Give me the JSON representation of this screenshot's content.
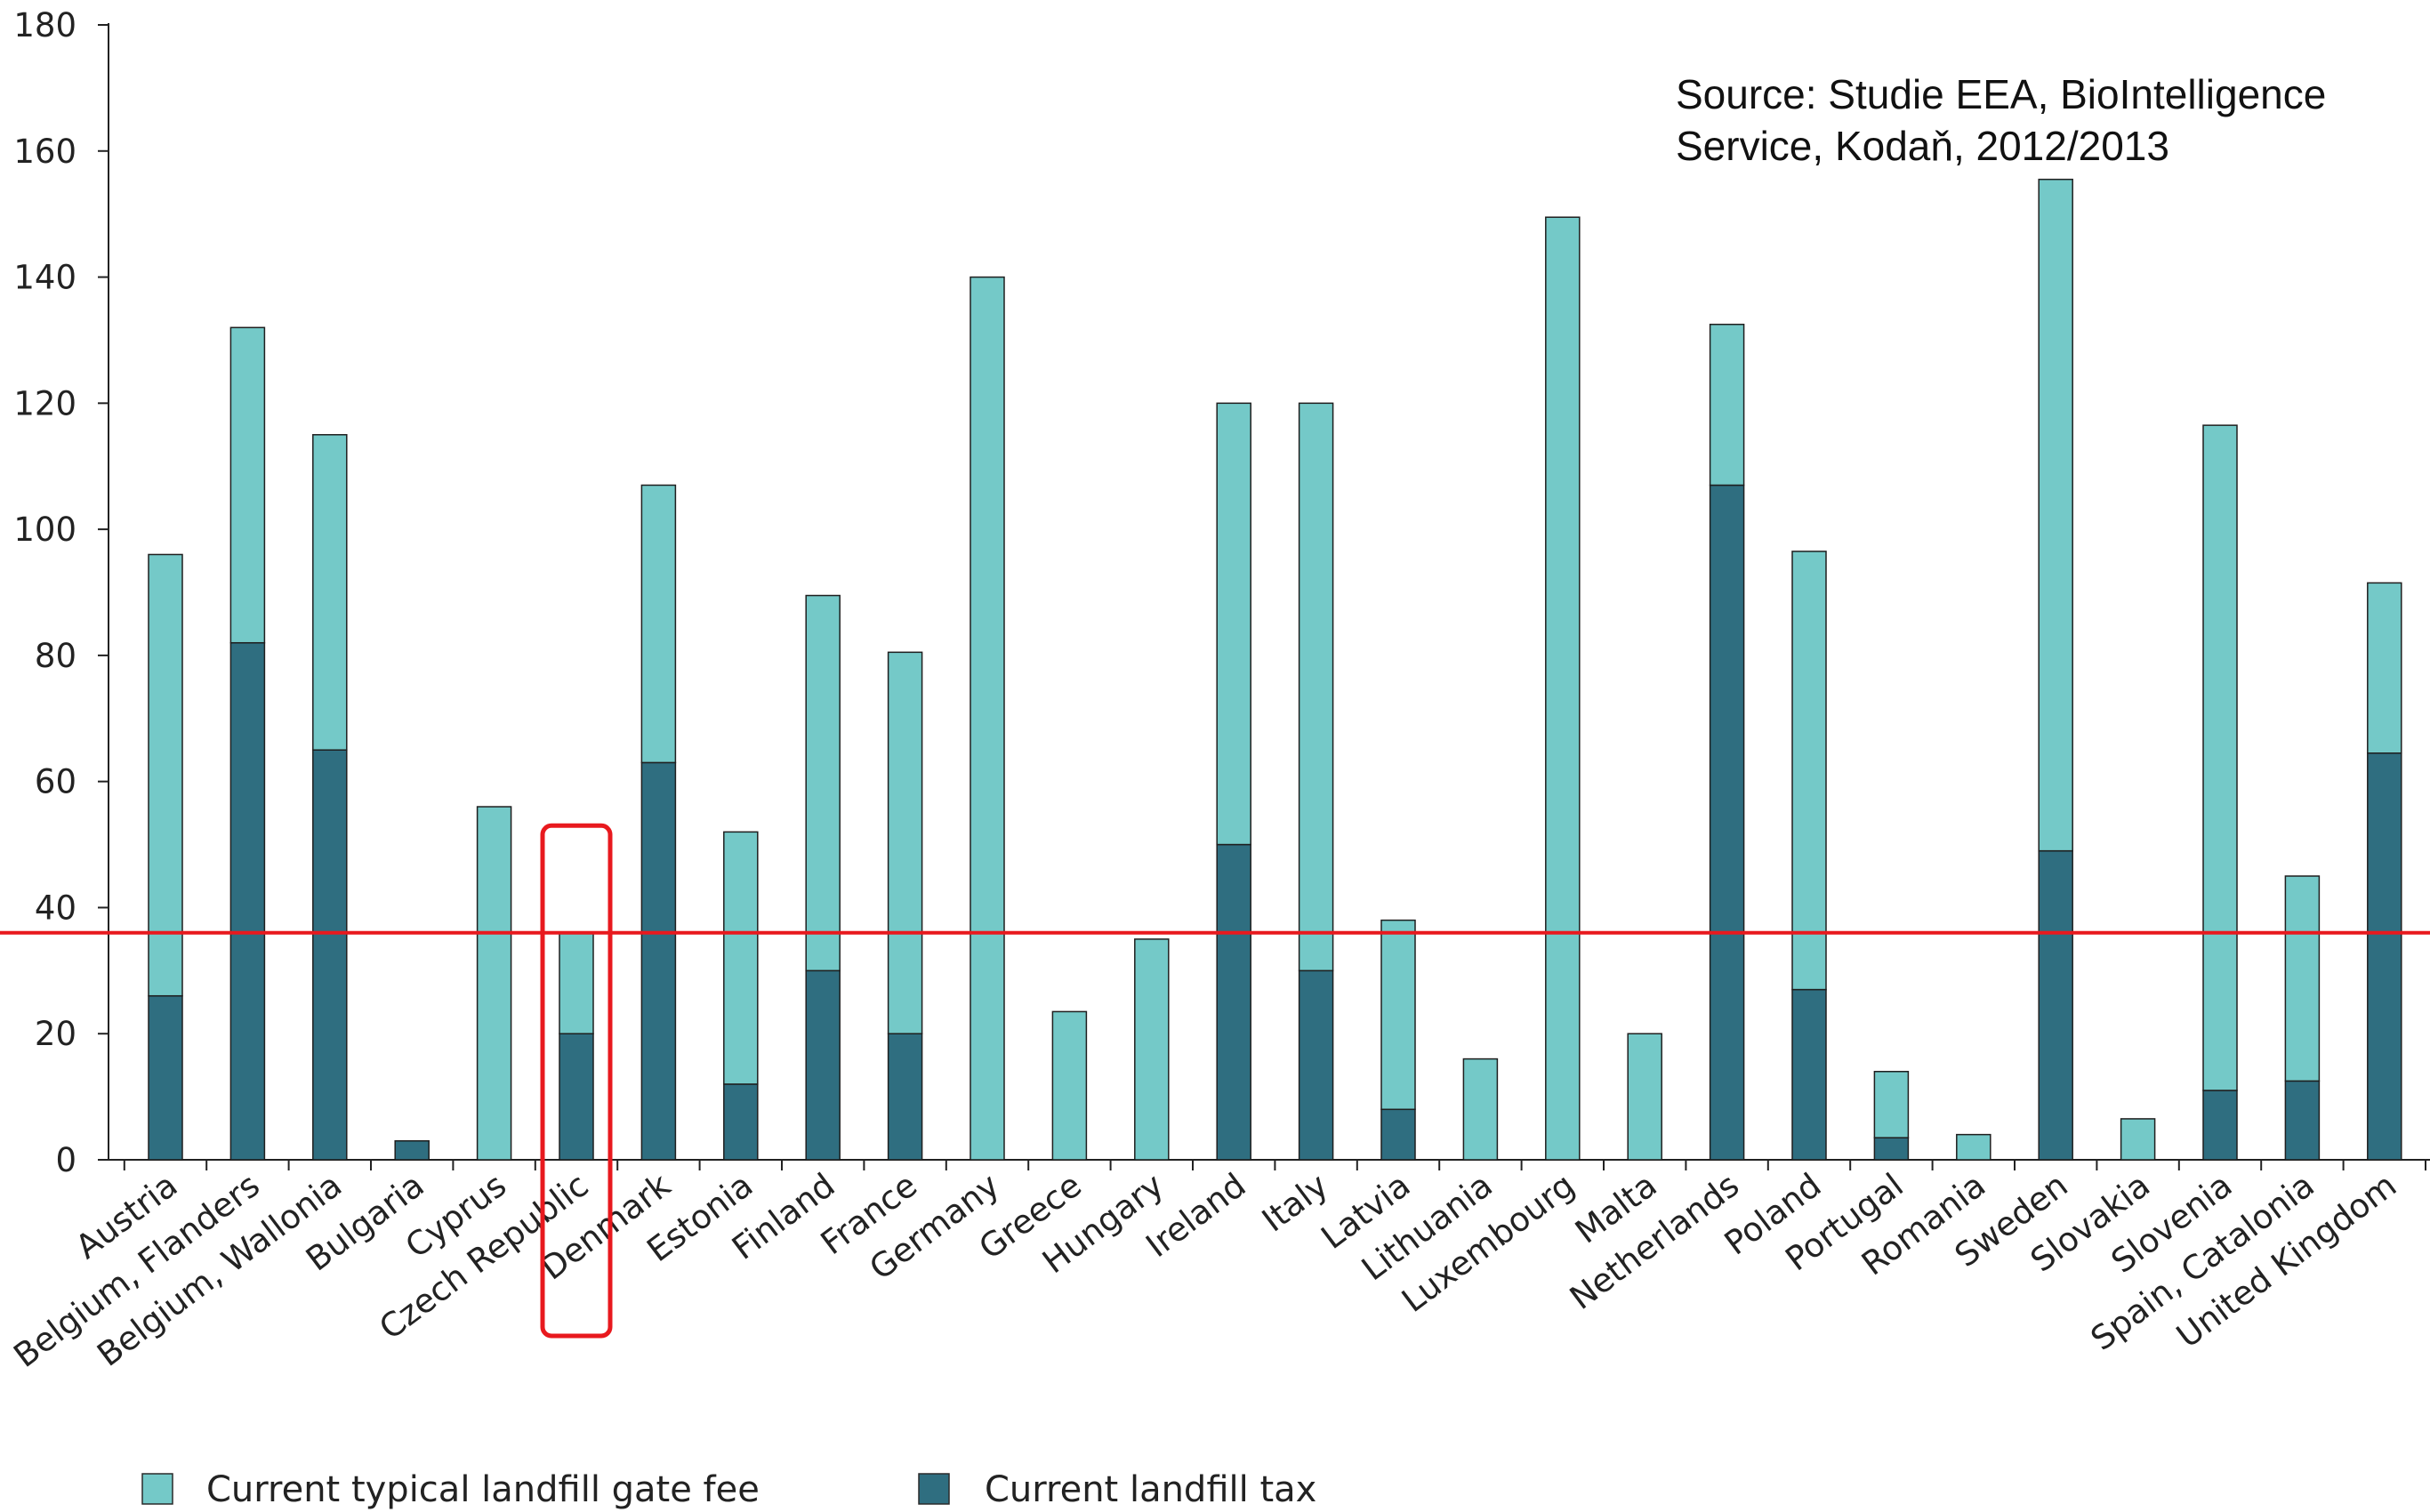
{
  "chart_data": {
    "type": "bar",
    "stacked": true,
    "ylim": [
      0,
      180
    ],
    "yticks": [
      0,
      20,
      40,
      60,
      80,
      100,
      120,
      140,
      160,
      180
    ],
    "categories": [
      "Austria",
      "Belgium, Flanders",
      "Belgium, Wallonia",
      "Bulgaria",
      "Cyprus",
      "Czech Republic",
      "Denmark",
      "Estonia",
      "Finland",
      "France",
      "Germany",
      "Greece",
      "Hungary",
      "Ireland",
      "Italy",
      "Latvia",
      "Lithuania",
      "Luxembourg",
      "Malta",
      "Netherlands",
      "Poland",
      "Portugal",
      "Romania",
      "Sweden",
      "Slovakia",
      "Slovenia",
      "Spain, Catalonia",
      "United Kingdom"
    ],
    "series": [
      {
        "name": "Current landfill tax",
        "color": "#2f6e80",
        "values": [
          26,
          82,
          65,
          3,
          0,
          20,
          63,
          12,
          30,
          20,
          0,
          0,
          0,
          50,
          30,
          8,
          0,
          0,
          0,
          107,
          27,
          3.5,
          0,
          49,
          0,
          11,
          12.5,
          64.5
        ]
      },
      {
        "name": "Current typical landfill gate fee",
        "color": "#74c9c8",
        "values": [
          70,
          50,
          50,
          0,
          56,
          16,
          44,
          40,
          59.5,
          60.5,
          140,
          23.5,
          35,
          70,
          90,
          30,
          16,
          149.5,
          20,
          25.5,
          69.5,
          10.5,
          4,
          106.5,
          6.5,
          105.5,
          32.5,
          27
        ]
      }
    ],
    "reference_line": {
      "value": 36,
      "color": "#e8191e"
    },
    "highlight": {
      "category": "Czech Republic",
      "color": "#e8191e"
    },
    "annotation": [
      "Source: Studie EEA, BioIntelligence",
      "Service, Kodaň, 2012/2013"
    ],
    "legend": {
      "placement": "bottom-left",
      "items": [
        "Current typical landfill gate fee",
        "Current landfill tax"
      ]
    }
  }
}
